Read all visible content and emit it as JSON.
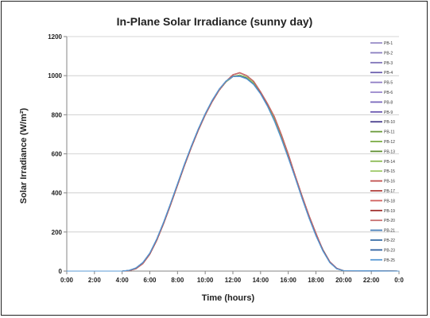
{
  "chart_data": {
    "type": "line",
    "title": "In-Plane Solar Irradiance (sunny day)",
    "xlabel": "Time (hours)",
    "ylabel": "Solar Irradiance (W/m²)",
    "xlim": [
      "0:00",
      "24:00"
    ],
    "ylim": [
      0,
      1200
    ],
    "x_ticks": [
      "0:00",
      "2:00",
      "4:00",
      "6:00",
      "8:00",
      "10:00",
      "12:00",
      "14:00",
      "16:00",
      "18:00",
      "20:00",
      "22:00",
      "0:0"
    ],
    "y_ticks": [
      0,
      200,
      400,
      600,
      800,
      1000,
      1200
    ],
    "grid": "horizontal",
    "legend": "right",
    "x": [
      "0:00",
      "4:00",
      "4:30",
      "5:00",
      "5:30",
      "6:00",
      "6:30",
      "7:00",
      "7:30",
      "8:00",
      "8:30",
      "9:00",
      "9:30",
      "10:00",
      "10:30",
      "11:00",
      "11:30",
      "12:00",
      "12:30",
      "13:00",
      "13:30",
      "14:00",
      "14:30",
      "15:00",
      "15:30",
      "16:00",
      "16:30",
      "17:00",
      "17:30",
      "18:00",
      "18:30",
      "19:00",
      "19:30",
      "20:00",
      "24:00"
    ],
    "series": [
      {
        "name": "PB-1",
        "color": "#9a8fc8",
        "values": [
          0,
          0,
          3,
          14,
          40,
          88,
          158,
          245,
          340,
          440,
          540,
          635,
          722,
          800,
          868,
          925,
          968,
          995,
          1000,
          990,
          962,
          915,
          852,
          775,
          685,
          588,
          485,
          380,
          280,
          190,
          110,
          48,
          14,
          2,
          0
        ]
      },
      {
        "name": "PB-2",
        "color": "#8a7fc0",
        "values": [
          0,
          0,
          3,
          15,
          41,
          89,
          160,
          246,
          342,
          441,
          541,
          636,
          723,
          801,
          869,
          926,
          970,
          997,
          1002,
          991,
          963,
          916,
          853,
          776,
          686,
          589,
          486,
          381,
          281,
          191,
          111,
          49,
          15,
          2,
          0
        ]
      },
      {
        "name": "PB-3",
        "color": "#7f73b9",
        "values": [
          0,
          0,
          3,
          14,
          40,
          88,
          159,
          245,
          341,
          440,
          540,
          635,
          722,
          800,
          868,
          925,
          969,
          996,
          1001,
          990,
          962,
          915,
          852,
          775,
          685,
          588,
          485,
          380,
          280,
          190,
          110,
          48,
          14,
          2,
          0
        ]
      },
      {
        "name": "PB-4",
        "color": "#6b5fae",
        "values": [
          0,
          0,
          3,
          14,
          40,
          88,
          158,
          244,
          340,
          440,
          540,
          634,
          721,
          799,
          867,
          924,
          968,
          995,
          1000,
          989,
          961,
          914,
          851,
          774,
          684,
          587,
          484,
          379,
          279,
          189,
          109,
          48,
          14,
          2,
          0
        ]
      },
      {
        "name": "PB-5",
        "color": "#8f7dc5",
        "values": [
          0,
          0,
          3,
          15,
          41,
          89,
          159,
          246,
          341,
          441,
          541,
          636,
          723,
          801,
          869,
          926,
          969,
          996,
          1001,
          991,
          963,
          916,
          853,
          776,
          686,
          589,
          486,
          381,
          281,
          191,
          111,
          49,
          15,
          2,
          0
        ]
      },
      {
        "name": "PB-6",
        "color": "#9a88cc",
        "values": [
          0,
          0,
          3,
          14,
          40,
          88,
          158,
          245,
          340,
          440,
          540,
          635,
          722,
          800,
          868,
          925,
          968,
          995,
          1000,
          990,
          962,
          915,
          852,
          775,
          685,
          588,
          485,
          380,
          280,
          190,
          110,
          48,
          14,
          2,
          0
        ]
      },
      {
        "name": "PB-8",
        "color": "#7a68bc",
        "values": [
          0,
          0,
          3,
          14,
          40,
          88,
          158,
          245,
          340,
          440,
          540,
          635,
          722,
          800,
          868,
          925,
          968,
          995,
          1000,
          990,
          962,
          915,
          852,
          775,
          685,
          588,
          485,
          380,
          280,
          190,
          110,
          48,
          14,
          2,
          0
        ]
      },
      {
        "name": "PB-9",
        "color": "#6a58b0",
        "values": [
          0,
          0,
          3,
          14,
          40,
          88,
          158,
          245,
          340,
          440,
          540,
          635,
          722,
          800,
          868,
          925,
          968,
          995,
          1000,
          990,
          962,
          915,
          852,
          775,
          685,
          588,
          485,
          380,
          280,
          190,
          110,
          48,
          14,
          2,
          0
        ]
      },
      {
        "name": "PB-10",
        "color": "#4a3f8f",
        "values": [
          0,
          0,
          3,
          14,
          40,
          88,
          158,
          245,
          340,
          440,
          540,
          635,
          722,
          800,
          868,
          925,
          968,
          995,
          1000,
          990,
          962,
          915,
          852,
          775,
          685,
          588,
          485,
          380,
          280,
          190,
          110,
          48,
          14,
          2,
          0
        ]
      },
      {
        "name": "PB-11",
        "color": "#6a9a3a",
        "values": [
          0,
          0,
          2,
          13,
          39,
          87,
          157,
          244,
          339,
          439,
          539,
          634,
          721,
          799,
          867,
          924,
          968,
          996,
          1003,
          992,
          963,
          915,
          852,
          774,
          684,
          587,
          484,
          379,
          279,
          189,
          109,
          47,
          13,
          2,
          0
        ]
      },
      {
        "name": "PB-12",
        "color": "#7cab45",
        "values": [
          0,
          0,
          2,
          13,
          39,
          87,
          157,
          244,
          339,
          439,
          539,
          634,
          721,
          799,
          867,
          924,
          968,
          996,
          1003,
          992,
          963,
          915,
          852,
          774,
          684,
          587,
          484,
          379,
          279,
          189,
          109,
          47,
          13,
          2,
          0
        ]
      },
      {
        "name": "PB-13",
        "color": "#5f8f30",
        "values": [
          0,
          0,
          2,
          13,
          39,
          87,
          157,
          244,
          339,
          439,
          539,
          634,
          721,
          799,
          867,
          924,
          968,
          996,
          1003,
          992,
          963,
          915,
          852,
          774,
          684,
          587,
          484,
          379,
          279,
          189,
          109,
          47,
          13,
          2,
          0
        ]
      },
      {
        "name": "PB-14",
        "color": "#8cba55",
        "values": [
          0,
          0,
          2,
          13,
          39,
          87,
          157,
          244,
          339,
          439,
          539,
          634,
          721,
          799,
          867,
          924,
          968,
          996,
          1003,
          992,
          963,
          915,
          852,
          774,
          684,
          587,
          484,
          379,
          279,
          189,
          109,
          47,
          13,
          2,
          0
        ]
      },
      {
        "name": "PB-15",
        "color": "#9cc865",
        "values": [
          0,
          0,
          2,
          13,
          39,
          87,
          157,
          244,
          339,
          439,
          539,
          634,
          721,
          799,
          867,
          924,
          968,
          996,
          1003,
          992,
          963,
          915,
          852,
          774,
          684,
          587,
          484,
          379,
          279,
          189,
          109,
          47,
          13,
          2,
          0
        ]
      },
      {
        "name": "PB-16",
        "color": "#c0504d",
        "values": [
          0,
          0,
          2,
          12,
          38,
          86,
          156,
          243,
          338,
          438,
          538,
          633,
          720,
          798,
          866,
          924,
          970,
          1005,
          1015,
          1000,
          972,
          918,
          858,
          790,
          700,
          600,
          490,
          385,
          285,
          195,
          108,
          48,
          14,
          2,
          0
        ]
      },
      {
        "name": "PB-17",
        "color": "#b0403d",
        "values": [
          0,
          0,
          2,
          12,
          38,
          86,
          156,
          243,
          338,
          438,
          538,
          633,
          720,
          798,
          866,
          924,
          970,
          1004,
          1014,
          1000,
          971,
          917,
          857,
          788,
          698,
          598,
          489,
          384,
          284,
          194,
          108,
          48,
          14,
          2,
          0
        ]
      },
      {
        "name": "PB-18",
        "color": "#d0605d",
        "values": [
          0,
          0,
          2,
          12,
          38,
          86,
          156,
          243,
          338,
          438,
          538,
          633,
          720,
          798,
          866,
          924,
          970,
          1005,
          1016,
          1001,
          972,
          918,
          858,
          790,
          700,
          600,
          490,
          385,
          285,
          195,
          108,
          48,
          14,
          2,
          0
        ]
      },
      {
        "name": "PB-19",
        "color": "#a0302d",
        "values": [
          0,
          0,
          2,
          12,
          38,
          86,
          156,
          243,
          338,
          438,
          538,
          633,
          720,
          798,
          866,
          924,
          970,
          1004,
          1014,
          1000,
          971,
          917,
          857,
          789,
          699,
          599,
          489,
          384,
          284,
          194,
          108,
          48,
          14,
          2,
          0
        ]
      },
      {
        "name": "PB-20",
        "color": "#c87070",
        "values": [
          0,
          0,
          2,
          12,
          38,
          86,
          156,
          243,
          338,
          438,
          538,
          633,
          720,
          798,
          866,
          924,
          970,
          1004,
          1015,
          1000,
          972,
          918,
          858,
          789,
          699,
          599,
          490,
          385,
          285,
          195,
          108,
          48,
          14,
          2,
          0
        ]
      },
      {
        "name": "PB-21",
        "color": "#4a7fb8",
        "values": [
          0,
          0,
          4,
          16,
          44,
          92,
          164,
          250,
          346,
          446,
          546,
          640,
          727,
          805,
          873,
          930,
          972,
          996,
          998,
          985,
          956,
          908,
          845,
          768,
          678,
          580,
          478,
          372,
          272,
          182,
          104,
          44,
          12,
          2,
          0
        ]
      },
      {
        "name": "PB-22",
        "color": "#3a6fa8",
        "values": [
          0,
          0,
          4,
          16,
          44,
          92,
          164,
          250,
          346,
          446,
          546,
          640,
          727,
          805,
          873,
          930,
          972,
          996,
          998,
          985,
          956,
          908,
          845,
          768,
          678,
          580,
          478,
          372,
          272,
          182,
          104,
          44,
          12,
          2,
          0
        ]
      },
      {
        "name": "PB-23",
        "color": "#2f62a0",
        "values": [
          0,
          0,
          4,
          16,
          44,
          92,
          164,
          250,
          346,
          446,
          546,
          640,
          727,
          805,
          873,
          930,
          972,
          996,
          998,
          985,
          956,
          908,
          845,
          768,
          678,
          580,
          478,
          372,
          272,
          182,
          104,
          44,
          12,
          2,
          0
        ]
      },
      {
        "name": "PB-25",
        "color": "#5b9bd5",
        "values": [
          0,
          0,
          4,
          17,
          45,
          93,
          165,
          252,
          348,
          448,
          548,
          642,
          729,
          806,
          874,
          930,
          972,
          995,
          996,
          983,
          954,
          906,
          843,
          766,
          676,
          578,
          476,
          370,
          270,
          180,
          102,
          43,
          12,
          2,
          0
        ]
      }
    ]
  }
}
